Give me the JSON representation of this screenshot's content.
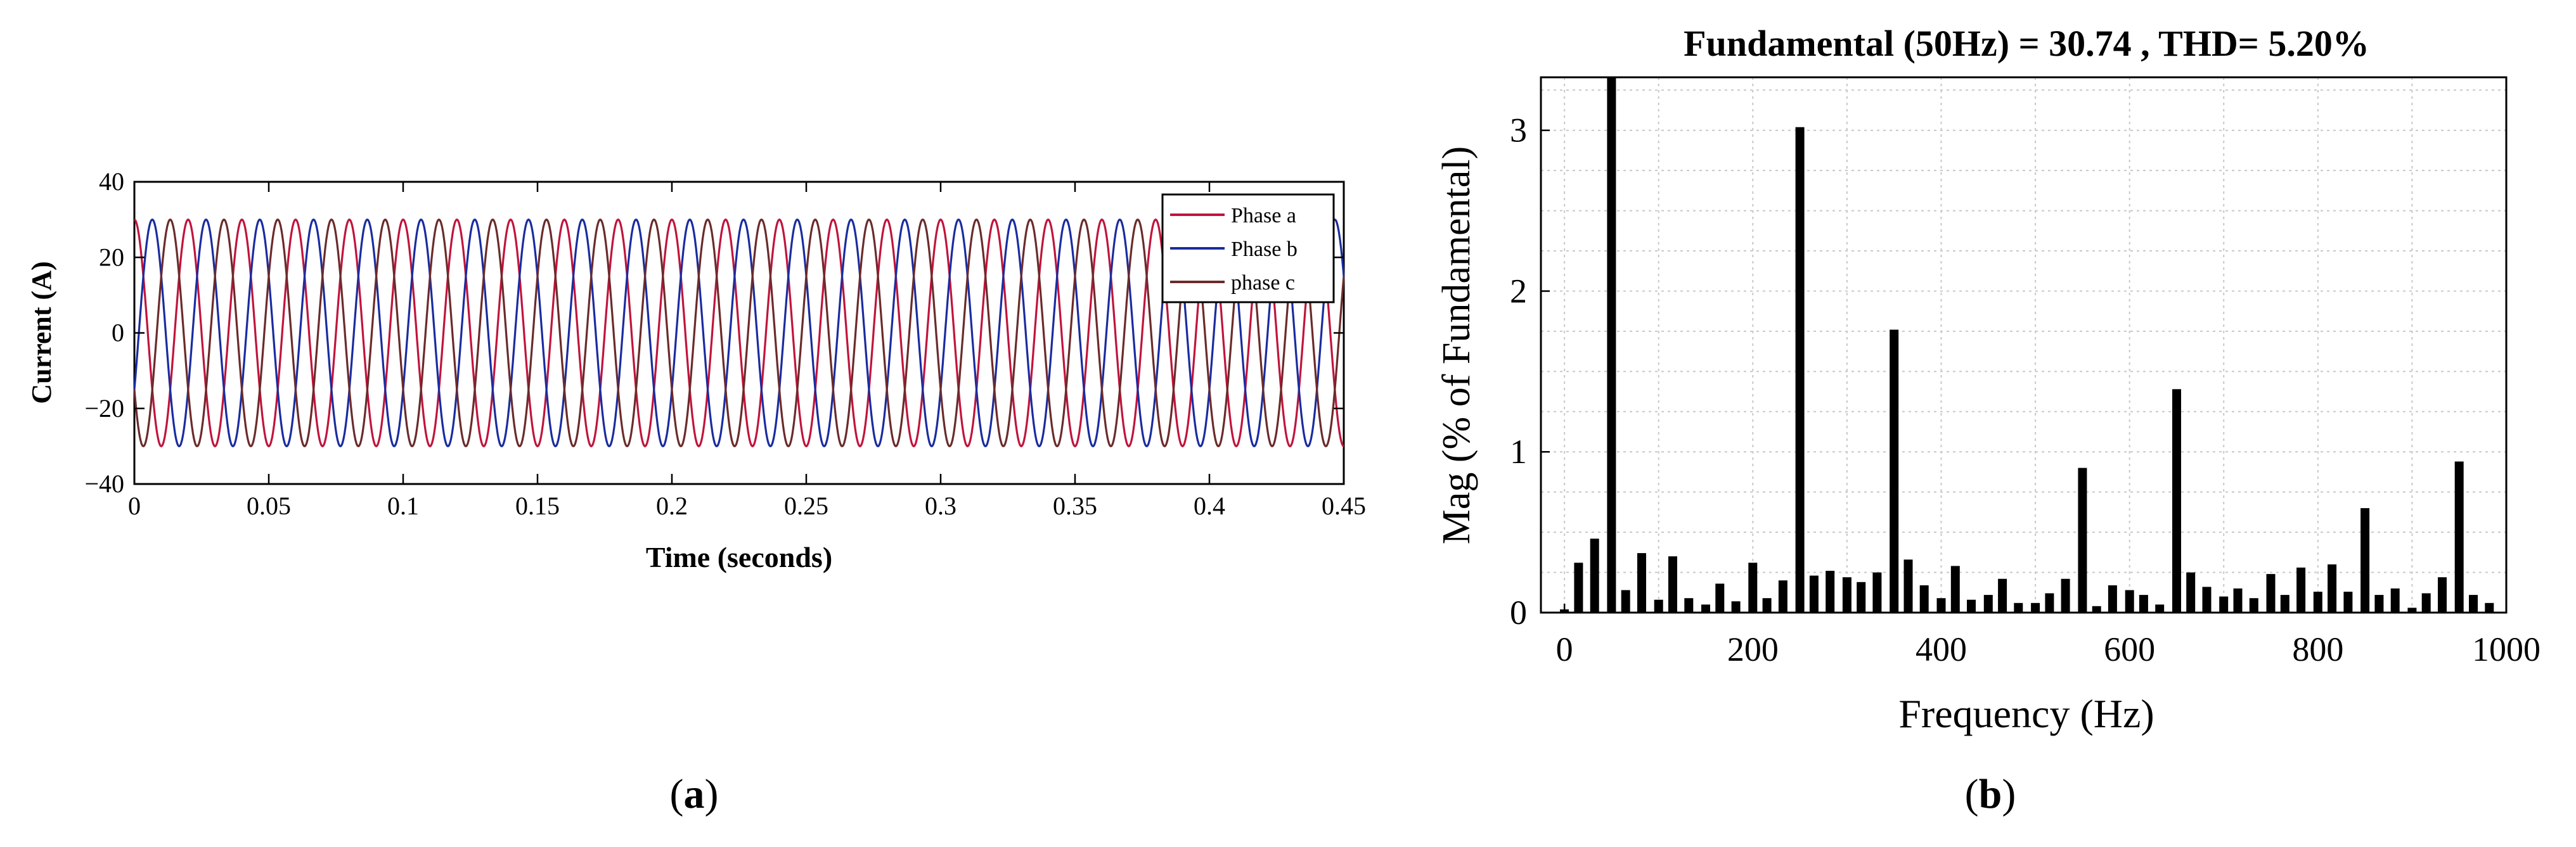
{
  "chart_data": [
    {
      "type": "line",
      "panel_label": "a",
      "title": "",
      "xlabel": "Time (seconds)",
      "ylabel": "Current (A)",
      "xlim": [
        0,
        0.45
      ],
      "ylim": [
        -40,
        40
      ],
      "x_ticks": [
        0,
        0.05,
        0.1,
        0.15,
        0.2,
        0.25,
        0.3,
        0.35,
        0.4,
        0.45
      ],
      "x_tick_labels": [
        "0",
        "0.05",
        "0.1",
        "0.15",
        "0.2",
        "0.25",
        "0.3",
        "0.35",
        "0.4",
        "0.45"
      ],
      "y_ticks": [
        -40,
        -20,
        0,
        20,
        40
      ],
      "y_tick_labels": [
        "−40",
        "−20",
        "0",
        "20",
        "40"
      ],
      "grid": false,
      "legend_position": "top-right",
      "signal": {
        "frequency_hz": 50,
        "amplitude_a": 30,
        "x_step": 0.0002
      },
      "series": [
        {
          "name": "Phase a",
          "color": "#c0143c",
          "phase_deg": 90
        },
        {
          "name": "Phase b",
          "color": "#1a2ca0",
          "phase_deg": -30
        },
        {
          "name": "phase c",
          "color": "#6b2b2b",
          "phase_deg": -150
        }
      ]
    },
    {
      "type": "bar",
      "panel_label": "b",
      "title": "Fundamental (50Hz) = 30.74 , THD= 5.20%",
      "xlabel": "Frequency (Hz)",
      "ylabel": "Mag (% of Fundamental)",
      "xlim": [
        -25,
        1000
      ],
      "ylim": [
        0,
        3.33
      ],
      "x_ticks": [
        0,
        200,
        400,
        600,
        800,
        1000
      ],
      "x_tick_labels": [
        "0",
        "200",
        "400",
        "600",
        "800",
        "1000"
      ],
      "y_ticks": [
        0,
        1,
        2,
        3
      ],
      "y_tick_labels": [
        "0",
        "1",
        "2",
        "3"
      ],
      "grid": true,
      "bar_color": "#000000",
      "x": [
        0,
        15,
        32,
        50,
        65,
        82,
        100,
        115,
        132,
        150,
        165,
        182,
        200,
        215,
        232,
        250,
        265,
        282,
        300,
        315,
        332,
        350,
        365,
        382,
        400,
        415,
        432,
        450,
        465,
        482,
        500,
        515,
        532,
        550,
        565,
        582,
        600,
        615,
        632,
        650,
        665,
        682,
        700,
        715,
        732,
        750,
        765,
        782,
        800,
        815,
        832,
        850,
        865,
        882,
        900,
        915,
        932,
        950,
        965,
        982
      ],
      "values": [
        0.02,
        0.31,
        0.46,
        3.33,
        0.14,
        0.37,
        0.08,
        0.35,
        0.09,
        0.05,
        0.18,
        0.07,
        0.31,
        0.09,
        0.2,
        3.02,
        0.23,
        0.26,
        0.22,
        0.19,
        0.25,
        1.76,
        0.33,
        0.17,
        0.09,
        0.29,
        0.08,
        0.11,
        0.21,
        0.06,
        0.06,
        0.12,
        0.21,
        0.9,
        0.04,
        0.17,
        0.14,
        0.11,
        0.05,
        1.39,
        0.25,
        0.16,
        0.1,
        0.15,
        0.09,
        0.24,
        0.11,
        0.28,
        0.13,
        0.3,
        0.13,
        0.65,
        0.11,
        0.15,
        0.03,
        0.12,
        0.22,
        0.94,
        0.11,
        0.06
      ]
    }
  ]
}
